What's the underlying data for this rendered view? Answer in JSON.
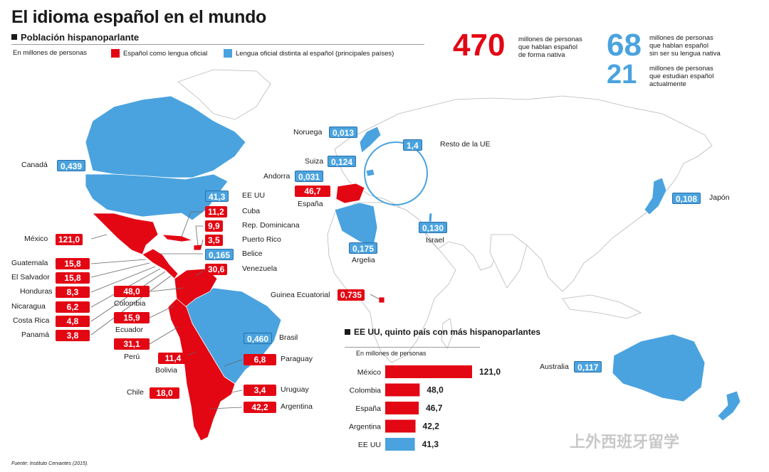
{
  "header": {
    "title": "El idioma español en el mundo",
    "subtitle": "Población hispanoparlante",
    "units": "En millones de personas",
    "legend_official": "Español como lengua oficial",
    "legend_other": "Lengua oficial distinta al español (principales países)"
  },
  "colors": {
    "red": "#e30613",
    "blue": "#4aa3df",
    "land": "#ffffff",
    "border": "#b8b8b8"
  },
  "stats": [
    {
      "value": "470",
      "text": [
        "millones de personas",
        "que hablan español",
        "de forma nativa"
      ],
      "color": "#e30613"
    },
    {
      "value": "68",
      "text": [
        "millones de personas",
        "que hablan español",
        "sin ser su lengua nativa"
      ],
      "color": "#4aa3df"
    },
    {
      "value": "21",
      "text": [
        "millones de personas",
        "que estudian español",
        "actualmente"
      ],
      "color": "#4aa3df"
    }
  ],
  "labels": {
    "mexico": {
      "name": "México",
      "value": "121,0"
    },
    "guatemala": {
      "name": "Guatemala",
      "value": "15,8"
    },
    "el_salvador": {
      "name": "El Salvador",
      "value": "15,8"
    },
    "honduras": {
      "name": "Honduras",
      "value": "8,3"
    },
    "nicaragua": {
      "name": "Nicaragua",
      "value": "6,2"
    },
    "costa_rica": {
      "name": "Costa Rica",
      "value": "4,8"
    },
    "panama": {
      "name": "Panamá",
      "value": "3,8"
    },
    "colombia": {
      "name": "Colombia",
      "value": "48,0"
    },
    "ecuador": {
      "name": "Ecuador",
      "value": "15,9"
    },
    "peru": {
      "name": "Perú",
      "value": "31,1"
    },
    "bolivia": {
      "name": "Bolivia",
      "value": "11,4"
    },
    "chile": {
      "name": "Chile",
      "value": "18,0"
    },
    "cuba": {
      "name": "Cuba",
      "value": "11,2"
    },
    "rep_dominicana": {
      "name": "Rep. Dominicana",
      "value": "9,9"
    },
    "puerto_rico": {
      "name": "Puerto Rico",
      "value": "3,5"
    },
    "belice": {
      "name": "Belice",
      "value": "0,165"
    },
    "venezuela": {
      "name": "Venezuela",
      "value": "30,6"
    },
    "eeuu": {
      "name": "EE UU",
      "value": "41,3"
    },
    "canada": {
      "name": "Canadá",
      "value": "0,439"
    },
    "brasil": {
      "name": "Brasil",
      "value": "0,460"
    },
    "paraguay": {
      "name": "Paraguay",
      "value": "6,8"
    },
    "uruguay": {
      "name": "Uruguay",
      "value": "3,4"
    },
    "argentina": {
      "name": "Argentina",
      "value": "42,2"
    },
    "espana": {
      "name": "España",
      "value": "46,7"
    },
    "andorra": {
      "name": "Andorra",
      "value": "0,031"
    },
    "suiza": {
      "name": "Suiza",
      "value": "0,124"
    },
    "noruega": {
      "name": "Noruega",
      "value": "0,013"
    },
    "resto_ue": {
      "name": "Resto de la UE",
      "value": "1,4"
    },
    "argelia": {
      "name": "Argelia",
      "value": "0,175"
    },
    "israel": {
      "name": "Israel",
      "value": "0,130"
    },
    "guinea": {
      "name": "Guinea Ecuatorial",
      "value": "0,735"
    },
    "japon": {
      "name": "Japón",
      "value": "0,108"
    },
    "australia": {
      "name": "Australia",
      "value": "0,117"
    }
  },
  "chart_data": {
    "type": "bar",
    "orientation": "horizontal",
    "title": "EE UU, quinto país con más hispanoparlantes",
    "subtitle": "En millones de personas",
    "categories": [
      "México",
      "Colombia",
      "España",
      "Argentina",
      "EE UU"
    ],
    "values": [
      121.0,
      48.0,
      46.7,
      42.2,
      41.3
    ],
    "value_labels": [
      "121,0",
      "48,0",
      "46,7",
      "42,2",
      "41,3"
    ],
    "colors": [
      "#e30613",
      "#e30613",
      "#e30613",
      "#e30613",
      "#4aa3df"
    ],
    "xlim": [
      0,
      121
    ]
  },
  "footer": {
    "source": "Fuente: Instituto Cervantes (2015).",
    "watermark": "上外西班牙留学"
  }
}
